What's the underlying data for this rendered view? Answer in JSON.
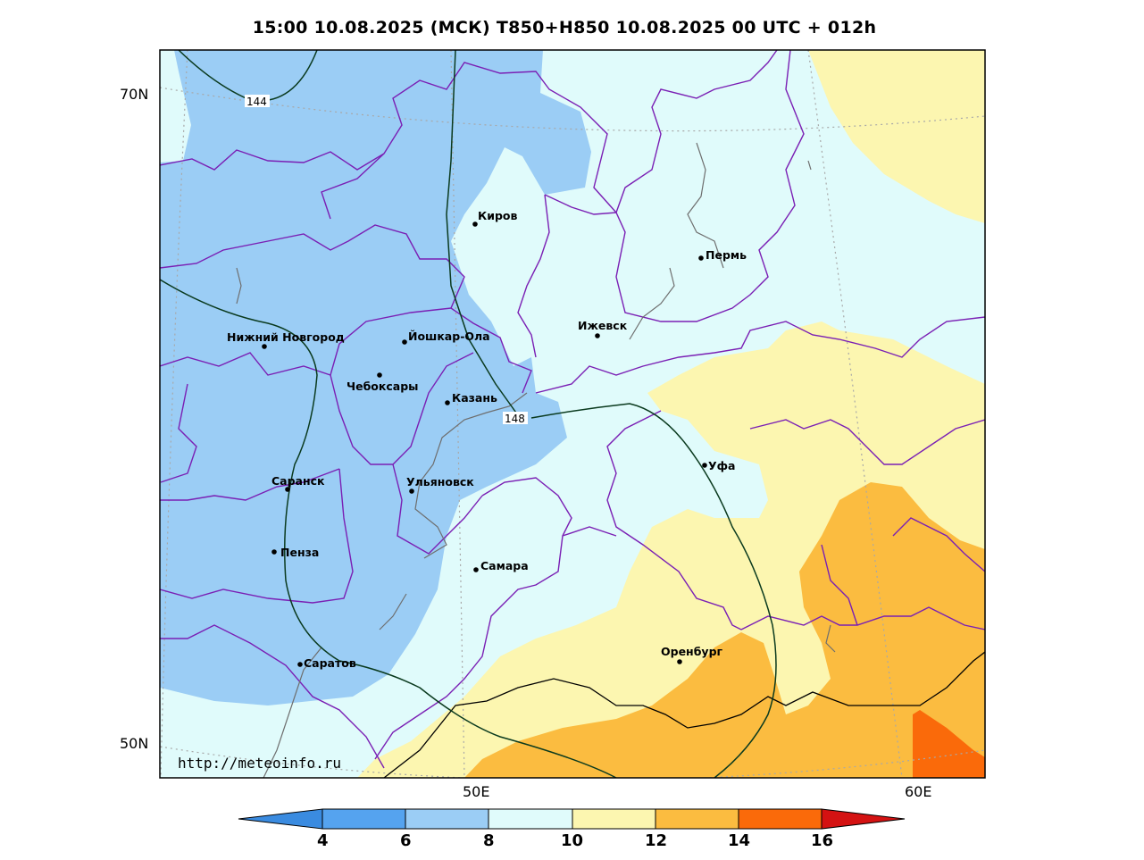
{
  "title": "15:00 10.08.2025 (МСК) T850+H850 10.08.2025 00 UTC + 012h",
  "watermark": "http://meteoinfo.ru",
  "lat_labels": [
    "70N",
    "50N"
  ],
  "lon_labels": [
    "50E",
    "60E"
  ],
  "contour_labels": [
    "144",
    "148"
  ],
  "colorbar": {
    "ticks": [
      "4",
      "6",
      "8",
      "10",
      "12",
      "14",
      "16"
    ],
    "colors": {
      "below_4": "#3a8be0",
      "4_6": "#55a3ef",
      "6_8": "#9bcdf5",
      "8_10": "#e0fbfb",
      "10_12": "#fcf6b0",
      "12_14": "#fbbc40",
      "14_16": "#fa6a0a",
      "above_16": "#d41212"
    }
  },
  "cities": [
    {
      "name": "Киров"
    },
    {
      "name": "Пермь"
    },
    {
      "name": "Ижевск"
    },
    {
      "name": "Нижний Новгород"
    },
    {
      "name": "Йошкар-Ола"
    },
    {
      "name": "Чебоксары"
    },
    {
      "name": "Казань"
    },
    {
      "name": "Уфа"
    },
    {
      "name": "Саранск"
    },
    {
      "name": "Ульяновск"
    },
    {
      "name": "Пенза"
    },
    {
      "name": "Самара"
    },
    {
      "name": "Оренбург"
    },
    {
      "name": "Саратов"
    }
  ]
}
